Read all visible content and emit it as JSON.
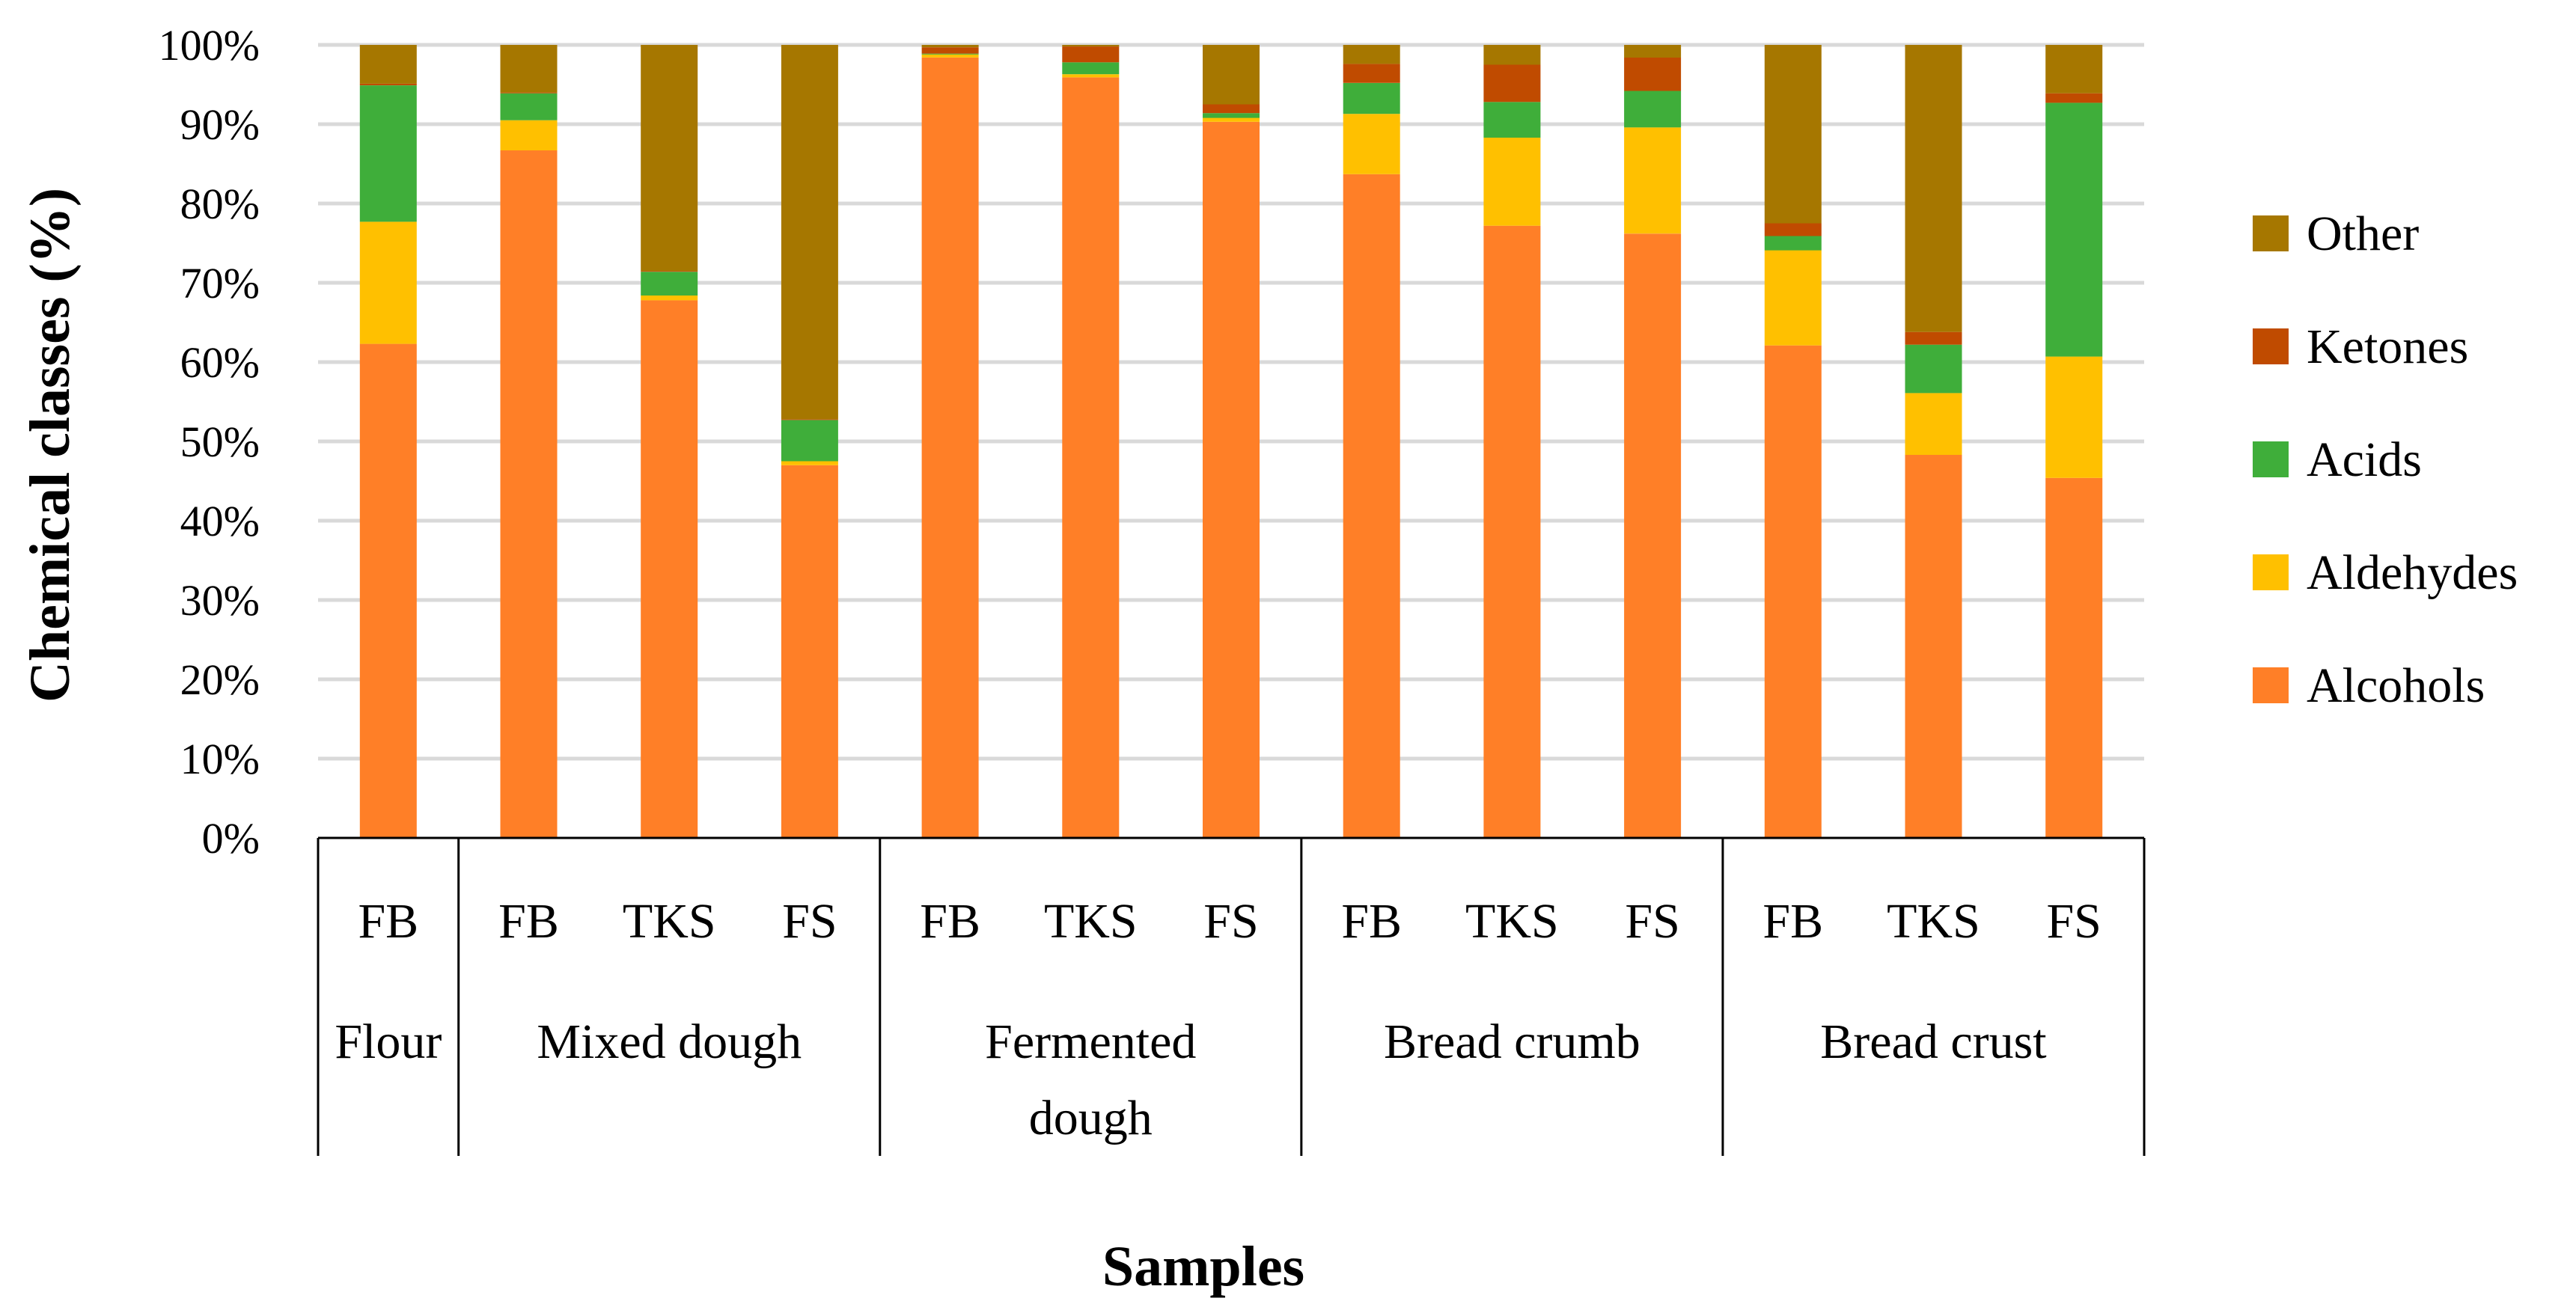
{
  "chart_data": {
    "type": "bar",
    "stacked": true,
    "percent": true,
    "title": "",
    "xlabel": "Samples",
    "ylabel": "Chemical classes (%)",
    "ylim": [
      0,
      100
    ],
    "yticks": [
      "0%",
      "10%",
      "20%",
      "30%",
      "40%",
      "50%",
      "60%",
      "70%",
      "80%",
      "90%",
      "100%"
    ],
    "grid": true,
    "legend_position": "right",
    "categories": [
      "FB",
      "FB",
      "TKS",
      "FS",
      "FB",
      "TKS",
      "FS",
      "FB",
      "TKS",
      "FS",
      "FB",
      "TKS",
      "FS"
    ],
    "groups": [
      {
        "label": "Flour",
        "count": 1
      },
      {
        "label": "Mixed dough",
        "count": 3
      },
      {
        "label": "Fermented dough",
        "label_lines": [
          "Fermented",
          "dough"
        ],
        "count": 3
      },
      {
        "label": "Bread crumb",
        "count": 3
      },
      {
        "label": "Bread crust",
        "count": 3
      }
    ],
    "series": [
      {
        "name": "Alcohols",
        "color": "#FF7F27",
        "values": [
          62.3,
          86.7,
          67.8,
          47.0,
          98.4,
          95.9,
          90.3,
          83.7,
          77.2,
          76.2,
          62.1,
          48.3,
          45.4
        ]
      },
      {
        "name": "Aldehydes",
        "color": "#FFC000",
        "values": [
          15.4,
          3.8,
          0.6,
          0.5,
          0.4,
          0.4,
          0.5,
          7.6,
          11.1,
          13.4,
          12.0,
          7.8,
          15.3
        ]
      },
      {
        "name": "Acids",
        "color": "#3FAE3A",
        "values": [
          17.2,
          3.4,
          3.0,
          5.2,
          0.1,
          1.5,
          0.6,
          3.9,
          4.5,
          4.6,
          1.8,
          6.1,
          32.0
        ]
      },
      {
        "name": "Ketones",
        "color": "#C04B00",
        "values": [
          0.2,
          0.1,
          0.1,
          0.1,
          0.8,
          2.0,
          1.1,
          2.4,
          4.7,
          4.2,
          1.6,
          1.6,
          1.2
        ]
      },
      {
        "name": "Other",
        "color": "#A67700",
        "values": [
          4.9,
          6.0,
          28.5,
          47.2,
          0.3,
          0.2,
          7.5,
          2.4,
          2.5,
          1.6,
          22.5,
          36.2,
          6.1
        ]
      }
    ],
    "legend_order": [
      "Other",
      "Ketones",
      "Acids",
      "Aldehydes",
      "Alcohols"
    ]
  }
}
